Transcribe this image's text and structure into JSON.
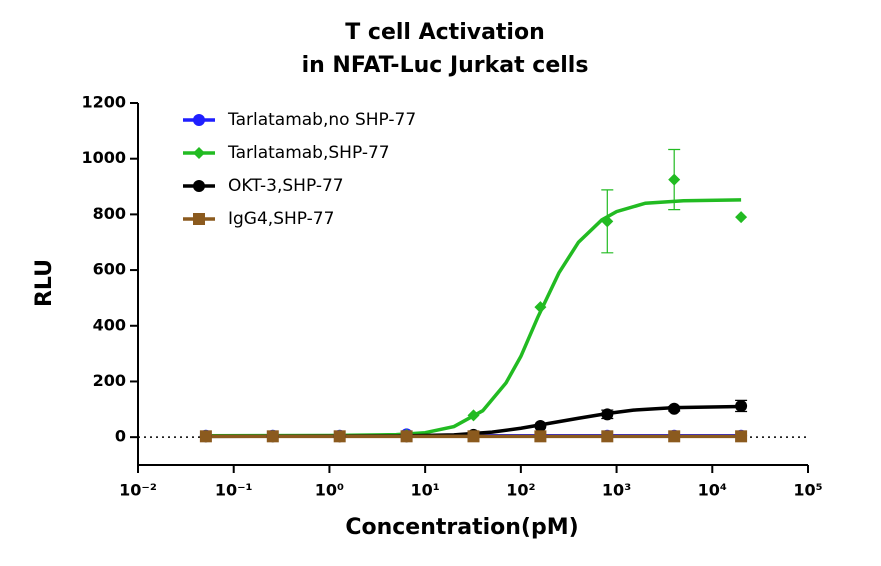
{
  "chart_data": {
    "type": "scatter",
    "title": "T cell Activation",
    "subtitle": "in NFAT-Luc Jurkat cells",
    "x_label": "Concentration(pM)",
    "y_label": "RLU",
    "x_scale": "log",
    "xlim": [
      0.01,
      100000
    ],
    "xticks": [
      {
        "value": 0.01,
        "label": "10⁻²"
      },
      {
        "value": 0.1,
        "label": "10⁻¹"
      },
      {
        "value": 1,
        "label": "10⁰"
      },
      {
        "value": 10,
        "label": "10¹"
      },
      {
        "value": 100,
        "label": "10²"
      },
      {
        "value": 1000,
        "label": "10³"
      },
      {
        "value": 10000,
        "label": "10⁴"
      },
      {
        "value": 100000,
        "label": "10⁵"
      }
    ],
    "ylim": [
      -100,
      1200
    ],
    "yticks": [
      0,
      200,
      400,
      600,
      800,
      1000,
      1200
    ],
    "legend": "upper left",
    "x": [
      0.0512,
      0.256,
      1.28,
      6.4,
      32,
      160,
      800,
      4000,
      20000
    ],
    "series": [
      {
        "name": "Tarlatamab,no SHP-77",
        "color": "#1f1fff",
        "marker": "circle",
        "values": [
          5,
          5,
          5,
          10,
          5,
          5,
          5,
          5,
          5
        ],
        "errors": [
          null,
          null,
          null,
          null,
          null,
          null,
          null,
          null,
          null
        ],
        "curve_x": [
          0.0512,
          20000
        ],
        "curve_values": [
          5,
          5
        ]
      },
      {
        "name": "Tarlatamab,SHP-77",
        "color": "#22bb22",
        "marker": "diamond",
        "values": [
          5,
          5,
          5,
          8,
          78,
          467,
          775,
          925,
          790
        ],
        "errors": [
          null,
          null,
          null,
          null,
          null,
          null,
          113,
          108,
          null
        ],
        "curve_x": [
          0.0512,
          1,
          5,
          10,
          20,
          40,
          70,
          100,
          150,
          250,
          400,
          700,
          1000,
          2000,
          5000,
          20000
        ],
        "curve_values": [
          5,
          6,
          9,
          16,
          38,
          95,
          195,
          290,
          430,
          590,
          700,
          780,
          810,
          840,
          849,
          852
        ]
      },
      {
        "name": "OKT-3,SHP-77",
        "color": "#000000",
        "marker": "circle",
        "values": [
          3,
          3,
          3,
          3,
          8,
          40,
          82,
          102,
          112
        ],
        "errors": [
          null,
          null,
          null,
          null,
          null,
          null,
          15,
          8,
          20
        ],
        "curve_x": [
          0.0512,
          5,
          20,
          50,
          100,
          200,
          400,
          800,
          1500,
          4000,
          20000
        ],
        "curve_values": [
          3,
          4,
          8,
          18,
          32,
          50,
          68,
          85,
          97,
          106,
          110
        ]
      },
      {
        "name": "IgG4,SHP-77",
        "color": "#8b5a1e",
        "marker": "square",
        "values": [
          3,
          3,
          3,
          3,
          3,
          3,
          3,
          3,
          3
        ],
        "errors": [
          null,
          null,
          null,
          null,
          null,
          null,
          null,
          null,
          null
        ],
        "curve_x": [
          0.0512,
          20000
        ],
        "curve_values": [
          3,
          3
        ]
      }
    ]
  }
}
